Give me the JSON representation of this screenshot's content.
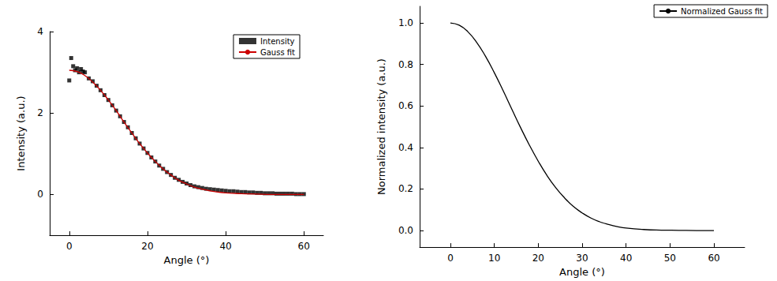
{
  "chart_data": [
    {
      "type": "line",
      "x_label": "Angle (°)",
      "y_label": "Intensity (a.u.)",
      "xlim": [
        -5,
        65
      ],
      "xticks": [
        0,
        20,
        40,
        60
      ],
      "ylim": [
        -1,
        4
      ],
      "yticks": [
        0,
        2,
        4
      ],
      "legend": "upper right",
      "series": [
        {
          "name": "Intensity",
          "type": "scatter",
          "color": "#000000",
          "marker": "square",
          "x": [
            0,
            0.5,
            1,
            1.5,
            2,
            2.5,
            3,
            3.5,
            4,
            5,
            6,
            7,
            8,
            9,
            10,
            11,
            12,
            13,
            14,
            15,
            16,
            17,
            18,
            19,
            20,
            21,
            22,
            23,
            24,
            25,
            26,
            27,
            28,
            29,
            30,
            31,
            32,
            33,
            34,
            35,
            36,
            37,
            38,
            39,
            40,
            41,
            42,
            43,
            44,
            45,
            46,
            47,
            48,
            49,
            50,
            51,
            52,
            53,
            54,
            55,
            56,
            57,
            58,
            59,
            60
          ],
          "values": [
            2.8,
            3.35,
            3.15,
            3.05,
            3.1,
            3.0,
            3.08,
            3.02,
            3.0,
            2.85,
            2.78,
            2.67,
            2.56,
            2.44,
            2.32,
            2.19,
            2.06,
            1.92,
            1.78,
            1.65,
            1.51,
            1.38,
            1.25,
            1.13,
            1.02,
            0.91,
            0.81,
            0.71,
            0.63,
            0.55,
            0.48,
            0.41,
            0.36,
            0.31,
            0.27,
            0.23,
            0.2,
            0.18,
            0.16,
            0.14,
            0.13,
            0.12,
            0.11,
            0.1,
            0.09,
            0.08,
            0.08,
            0.07,
            0.06,
            0.06,
            0.05,
            0.05,
            0.04,
            0.04,
            0.03,
            0.03,
            0.03,
            0.02,
            0.02,
            0.02,
            0.02,
            0.02,
            0.01,
            0.01,
            0.01
          ]
        },
        {
          "name": "Gauss fit",
          "type": "line",
          "color": "#cc0000",
          "line_style": "solid",
          "x": [
            0,
            2,
            4,
            6,
            8,
            10,
            12,
            14,
            16,
            18,
            20,
            22,
            24,
            26,
            28,
            30,
            32,
            34,
            36,
            38,
            40,
            44,
            48,
            52,
            56,
            60
          ],
          "values": [
            3.05,
            3.02,
            2.92,
            2.76,
            2.56,
            2.32,
            2.06,
            1.78,
            1.51,
            1.25,
            1.02,
            0.81,
            0.63,
            0.48,
            0.35,
            0.26,
            0.18,
            0.13,
            0.09,
            0.06,
            0.04,
            0.02,
            0.01,
            0,
            0,
            0
          ]
        }
      ]
    },
    {
      "type": "line",
      "x_label": "Angle (°)",
      "y_label": "Normalized intensity (a.u.)",
      "xlim": [
        -7,
        67
      ],
      "xticks": [
        0,
        10,
        20,
        30,
        40,
        50,
        60
      ],
      "ylim": [
        -0.08,
        1.08
      ],
      "yticks": [
        {
          "value": 0,
          "label": "0.0"
        },
        0.2,
        0.4,
        0.6,
        0.8,
        {
          "value": 1,
          "label": "1.0"
        }
      ],
      "legend": "upper right",
      "series": [
        {
          "name": "Normalized Gauss fit",
          "type": "line",
          "color": "#000000",
          "line_style": "solid",
          "x": [
            0,
            2,
            4,
            6,
            8,
            10,
            12,
            14,
            16,
            18,
            20,
            22,
            24,
            26,
            28,
            30,
            32,
            34,
            36,
            38,
            40,
            44,
            48,
            52,
            56,
            60
          ],
          "values": [
            1,
            0.989,
            0.957,
            0.906,
            0.839,
            0.76,
            0.674,
            0.584,
            0.495,
            0.411,
            0.334,
            0.265,
            0.206,
            0.157,
            0.116,
            0.085,
            0.06,
            0.042,
            0.029,
            0.019,
            0.012,
            0.005,
            0.002,
            0.001,
            0,
            0
          ]
        }
      ]
    }
  ]
}
